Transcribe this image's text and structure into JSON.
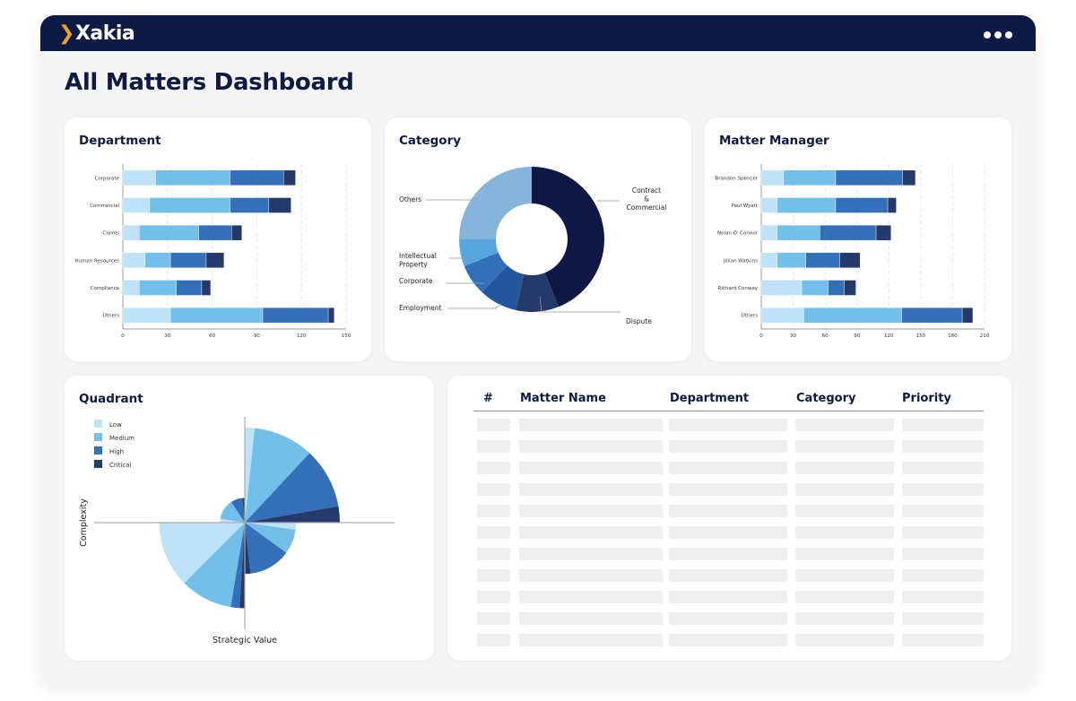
{
  "app": {
    "logo_text": "Xakia",
    "menu_icon": "more-horizontal-icon"
  },
  "page_title": "All Matters Dashboard",
  "colors": {
    "header": "#0c1a44",
    "accent": "#f5a21b",
    "low": "#bee3f8",
    "medium": "#72bfea",
    "high": "#3370b9",
    "critical": "#233a6b"
  },
  "department": {
    "title": "Department",
    "chart_data": {
      "type": "bar",
      "orientation": "horizontal",
      "stacked": true,
      "categories": [
        "Corporate",
        "Commercial",
        "Claims",
        "Human Resources",
        "Compliance",
        "Others"
      ],
      "series": [
        {
          "values": [
            22,
            18,
            11,
            15,
            11,
            32
          ]
        },
        {
          "values": [
            50,
            54,
            40,
            17,
            25,
            62
          ]
        },
        {
          "values": [
            36,
            26,
            22,
            24,
            17,
            44
          ]
        },
        {
          "values": [
            8,
            15,
            7,
            12,
            6,
            4
          ]
        }
      ],
      "xlim": [
        0,
        150
      ],
      "ticks": [
        "0",
        "30",
        "60",
        "90",
        "120",
        "150"
      ],
      "grid": true
    }
  },
  "category": {
    "title": "Category",
    "chart_data": {
      "type": "pie",
      "donut": true,
      "labels": [
        "Contract & Commercial",
        "Dispute",
        "Employment",
        "Corporate",
        "Intellectual Property",
        "Others"
      ],
      "label_lines": [
        [
          "Contract",
          "&",
          "Commercial"
        ],
        [
          "Dispute"
        ],
        [
          "Employment"
        ],
        [
          "Corporate"
        ],
        [
          "Intellectual",
          "Property"
        ],
        [
          "Others"
        ]
      ],
      "values": [
        44,
        9.5,
        8.5,
        7,
        6,
        25
      ],
      "colors": [
        "#0f1845",
        "#233a6b",
        "#23569a",
        "#3370b9",
        "#55a5de",
        "#86b4da"
      ]
    }
  },
  "matter_manager": {
    "title": "Matter Manager",
    "chart_data": {
      "type": "bar",
      "orientation": "horizontal",
      "stacked": true,
      "categories": [
        "Brandon Spencer",
        "Paul Wyatt",
        "Nolan O' Connor",
        "Jillian Watkins",
        "Richard Conway",
        "Others"
      ],
      "series": [
        {
          "values": [
            21,
            15,
            15,
            15,
            38,
            40
          ]
        },
        {
          "values": [
            49,
            55,
            40,
            27,
            25,
            92
          ]
        },
        {
          "values": [
            63,
            49,
            53,
            32,
            15,
            57
          ]
        },
        {
          "values": [
            12,
            8,
            14,
            19,
            11,
            10
          ]
        }
      ],
      "xlim": [
        0,
        210
      ],
      "ticks": [
        "0",
        "30",
        "60",
        "90",
        "120",
        "150",
        "180",
        "210"
      ],
      "grid": true
    }
  },
  "quadrant": {
    "title": "Quadrant",
    "chart_data": {
      "type": "polar-area",
      "xlabel": "Strategic Value",
      "ylabel": "Complexity",
      "legend": [
        "Low",
        "Medium",
        "High",
        "Critical"
      ],
      "legend_position": "top-left",
      "quadrants": [
        {
          "position": "top-right",
          "magnitude": 100,
          "shares": [
            6,
            37,
            37,
            10
          ]
        },
        {
          "position": "bottom-right",
          "magnitude": 54,
          "shares": [
            8,
            28,
            47.5,
            6.5
          ]
        },
        {
          "position": "bottom-left",
          "magnitude": 90,
          "shares": [
            45,
            35.5,
            6,
            3.5
          ]
        },
        {
          "position": "top-left",
          "magnitude": 26,
          "shares": [
            9,
            47.5,
            27.5,
            6
          ]
        }
      ]
    }
  },
  "table": {
    "headers": [
      "#",
      "Matter Name",
      "Department",
      "Category",
      "Priority"
    ],
    "row_count": 11,
    "rows_loading": true
  }
}
